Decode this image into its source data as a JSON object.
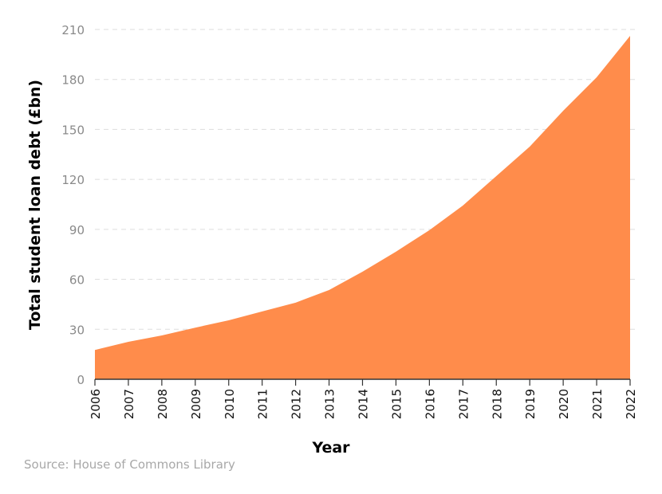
{
  "chart_data": {
    "type": "area",
    "title": "",
    "xlabel": "Year",
    "ylabel": "Total student loan debt (£bn)",
    "x": [
      "2006",
      "2007",
      "2008",
      "2009",
      "2010",
      "2011",
      "2012",
      "2013",
      "2014",
      "2015",
      "2016",
      "2017",
      "2018",
      "2019",
      "2020",
      "2021",
      "2022"
    ],
    "series": [
      {
        "values": [
          17.6,
          22.5,
          26.3,
          31,
          35.4,
          40.7,
          46,
          53.6,
          64.6,
          76.6,
          89.5,
          104.3,
          122,
          139.7,
          161.2,
          181.3,
          206.2
        ]
      }
    ],
    "yticks": [
      "0",
      "30",
      "60",
      "90",
      "120",
      "150",
      "180",
      "210"
    ],
    "ylim": [
      0,
      210
    ],
    "grid": "horizontal dashed",
    "legend": "none",
    "colors": {
      "area": "#ff8c4b",
      "grid": "#dddddd",
      "axis": "#333333"
    }
  },
  "source": "Source: House of Commons Library"
}
